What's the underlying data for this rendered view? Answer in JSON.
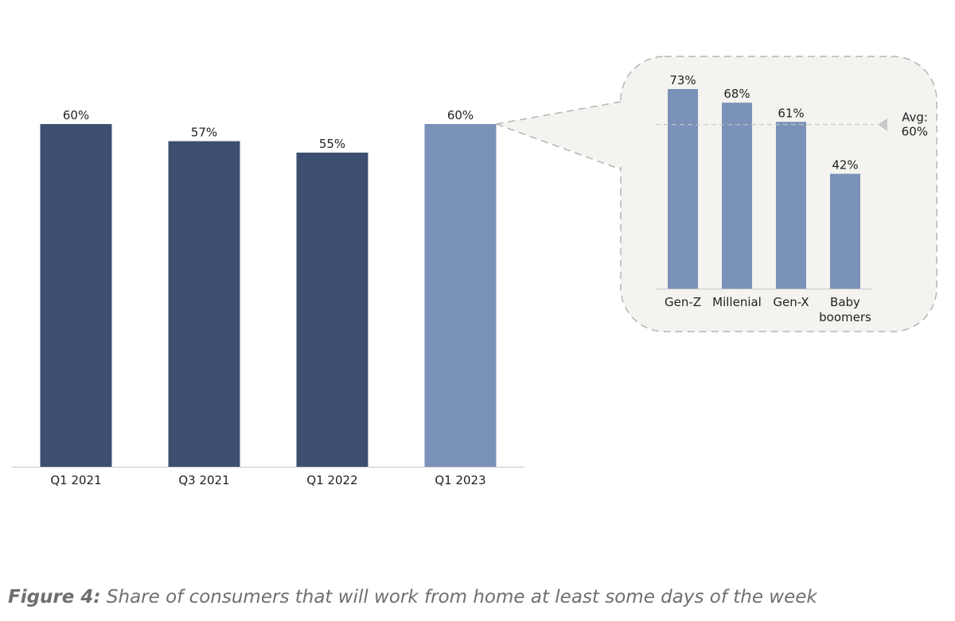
{
  "colors": {
    "bar_dark": "#3d4f70",
    "bar_light": "#7a91b8",
    "callout_bg": "#f4f3f0",
    "callout_border": "#b5b5b5",
    "axis": "#c8c8c8",
    "text": "#222222",
    "caption": "#6f6f6f"
  },
  "caption": {
    "prefix": "Figure 4:",
    "text": " Share of consumers that will work from home at least some days of the week"
  },
  "chart_data": [
    {
      "type": "bar",
      "categories": [
        "Q1 2021",
        "Q3 2021",
        "Q1 2022",
        "Q1 2023"
      ],
      "values": [
        60,
        57,
        55,
        60
      ],
      "data_labels": [
        "60%",
        "57%",
        "55%",
        "60%"
      ],
      "highlighted_category": "Q1 2023",
      "ylim": [
        0,
        60
      ],
      "grid": false
    },
    {
      "type": "bar",
      "categories": [
        "Gen-Z",
        "Millenial",
        "Gen-X",
        "Baby boomers"
      ],
      "category_lines": [
        [
          "Gen-Z"
        ],
        [
          "Millenial"
        ],
        [
          "Gen-X"
        ],
        [
          "Baby",
          "boomers"
        ]
      ],
      "values": [
        73,
        68,
        61,
        42
      ],
      "data_labels": [
        "73%",
        "68%",
        "61%",
        "42%"
      ],
      "reference_line": {
        "value": 60,
        "label_lines": [
          "Avg:",
          "60%"
        ]
      },
      "breakdown_of": "Q1 2023",
      "ylim": [
        0,
        73
      ],
      "grid": false
    }
  ]
}
